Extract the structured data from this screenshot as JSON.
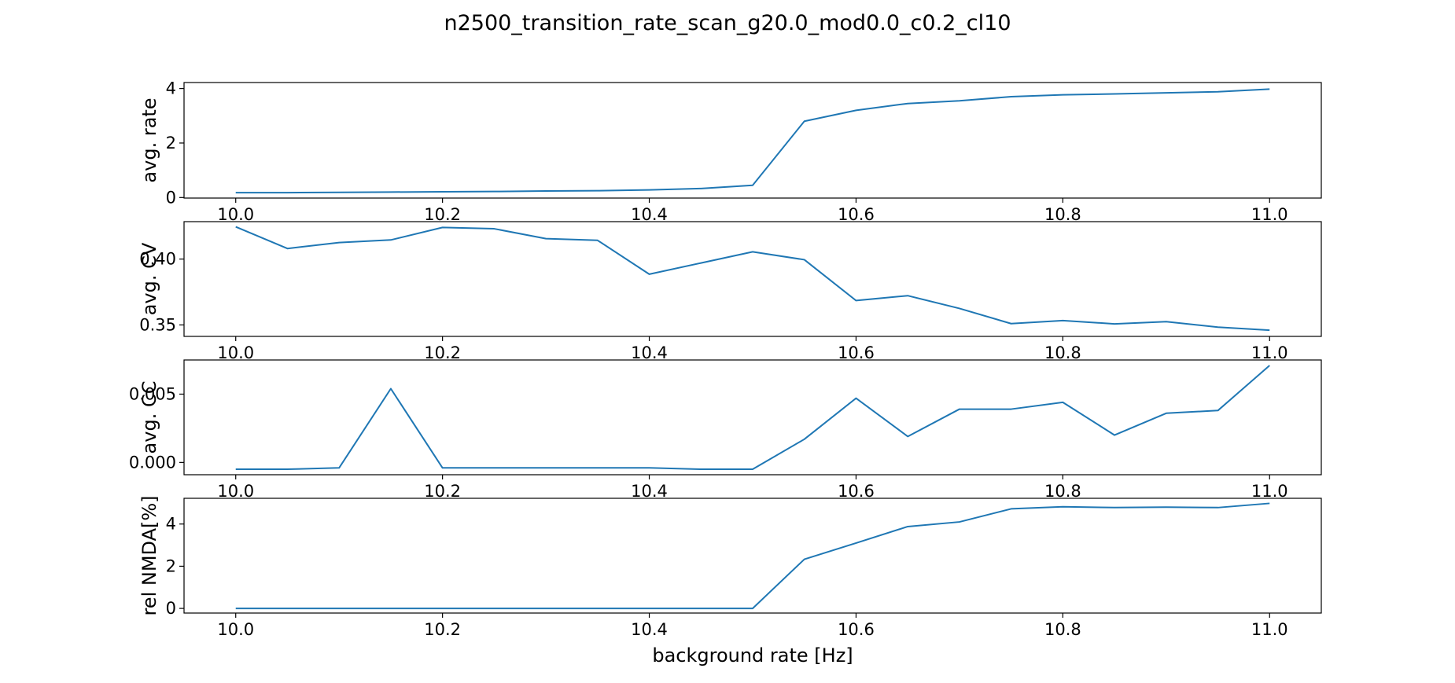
{
  "figure": {
    "title": "n2500_transition_rate_scan_g20.0_mod0.0_c0.2_cl10",
    "line_color": "#1f77b4"
  },
  "chart_data": [
    {
      "type": "line",
      "title": "n2500_transition_rate_scan_g20.0_mod0.0_c0.2_cl10",
      "xlabel": "",
      "ylabel": "avg. rate",
      "xlim": [
        9.95,
        11.05
      ],
      "ylim": [
        -0.02,
        4.22
      ],
      "xticks": [
        "10.0",
        "10.2",
        "10.4",
        "10.6",
        "10.8",
        "11.0"
      ],
      "yticks": [
        "0",
        "2",
        "4"
      ],
      "grid": false,
      "x": [
        10.0,
        10.05,
        10.1,
        10.15,
        10.2,
        10.25,
        10.3,
        10.35,
        10.4,
        10.45,
        10.5,
        10.55,
        10.6,
        10.65,
        10.7,
        10.75,
        10.8,
        10.85,
        10.9,
        10.95,
        11.0
      ],
      "series": [
        {
          "values": [
            0.18,
            0.18,
            0.19,
            0.2,
            0.21,
            0.22,
            0.24,
            0.25,
            0.28,
            0.33,
            0.45,
            2.8,
            3.2,
            3.45,
            3.55,
            3.7,
            3.77,
            3.8,
            3.84,
            3.88,
            3.98
          ]
        }
      ]
    },
    {
      "type": "line",
      "xlabel": "",
      "ylabel": "avg. CV",
      "xlim": [
        9.95,
        11.05
      ],
      "ylim": [
        0.3413,
        0.4284
      ],
      "xticks": [
        "10.0",
        "10.2",
        "10.4",
        "10.6",
        "10.8",
        "11.0"
      ],
      "yticks": [
        "0.35",
        "0.40"
      ],
      "grid": false,
      "x": [
        10.0,
        10.05,
        10.1,
        10.15,
        10.2,
        10.25,
        10.3,
        10.35,
        10.4,
        10.45,
        10.5,
        10.55,
        10.6,
        10.65,
        10.7,
        10.75,
        10.8,
        10.85,
        10.9,
        10.95,
        11.0
      ],
      "series": [
        {
          "values": [
            0.4245,
            0.408,
            0.4125,
            0.4145,
            0.424,
            0.423,
            0.4155,
            0.4142,
            0.3885,
            0.397,
            0.4055,
            0.3995,
            0.3685,
            0.3722,
            0.3625,
            0.351,
            0.3533,
            0.3508,
            0.3525,
            0.3483,
            0.346
          ]
        }
      ]
    },
    {
      "type": "line",
      "xlabel": "",
      "ylabel": "avg. CC",
      "xlim": [
        9.95,
        11.05
      ],
      "ylim": [
        -0.0009,
        0.0075
      ],
      "xticks": [
        "10.0",
        "10.2",
        "10.4",
        "10.6",
        "10.8",
        "11.0"
      ],
      "yticks": [
        "0.000",
        "0.005"
      ],
      "grid": false,
      "x": [
        10.0,
        10.05,
        10.1,
        10.15,
        10.2,
        10.25,
        10.3,
        10.35,
        10.4,
        10.45,
        10.5,
        10.55,
        10.6,
        10.65,
        10.7,
        10.75,
        10.8,
        10.85,
        10.9,
        10.95,
        11.0
      ],
      "series": [
        {
          "values": [
            -0.0005,
            -0.0005,
            -0.0004,
            0.0054,
            -0.0004,
            -0.0004,
            -0.0004,
            -0.0004,
            -0.0004,
            -0.0005,
            -0.0005,
            0.0017,
            0.0047,
            0.0019,
            0.0039,
            0.0039,
            0.0044,
            0.002,
            0.0036,
            0.0038,
            0.0071
          ]
        }
      ]
    },
    {
      "type": "line",
      "xlabel": "background rate [Hz]",
      "ylabel": "rel NMDA[%]",
      "xlim": [
        9.95,
        11.05
      ],
      "ylim": [
        -0.22,
        5.22
      ],
      "xticks": [
        "10.0",
        "10.2",
        "10.4",
        "10.6",
        "10.8",
        "11.0"
      ],
      "yticks": [
        "0",
        "2",
        "4"
      ],
      "grid": false,
      "x": [
        10.0,
        10.05,
        10.1,
        10.15,
        10.2,
        10.25,
        10.3,
        10.35,
        10.4,
        10.45,
        10.5,
        10.55,
        10.6,
        10.65,
        10.7,
        10.75,
        10.8,
        10.85,
        10.9,
        10.95,
        11.0
      ],
      "series": [
        {
          "values": [
            0,
            0,
            0,
            0,
            0,
            0,
            0,
            0,
            0,
            0,
            0,
            2.33,
            3.1,
            3.88,
            4.1,
            4.72,
            4.82,
            4.78,
            4.8,
            4.78,
            4.98
          ]
        }
      ]
    }
  ]
}
